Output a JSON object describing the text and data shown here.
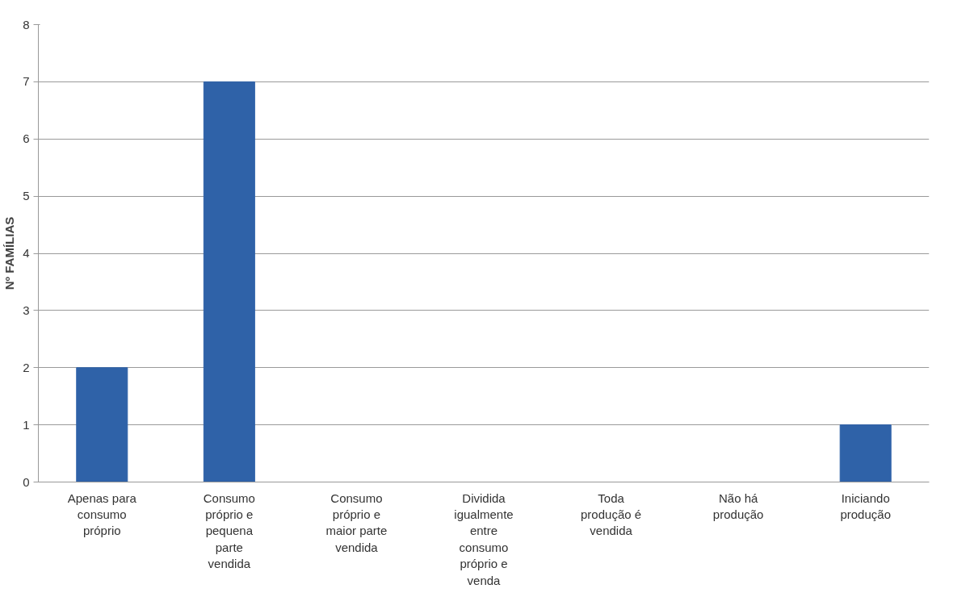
{
  "chart_data": {
    "type": "bar",
    "ylabel": "Nº FAMÍLIAS",
    "categories": [
      "Apenas para consumo próprio",
      "Consumo próprio e pequena parte vendida",
      "Consumo próprio e maior parte vendida",
      "Dividida igualmente entre consumo próprio e venda",
      "Toda produção é vendida",
      "Não há produção",
      "Iniciando produção"
    ],
    "values": [
      2,
      7,
      0,
      0,
      0,
      0,
      1
    ],
    "color": "#2f62a8",
    "ylim": [
      0,
      8
    ],
    "yticks": [
      0,
      1,
      2,
      3,
      4,
      5,
      6,
      7,
      8
    ],
    "grid": "y"
  }
}
